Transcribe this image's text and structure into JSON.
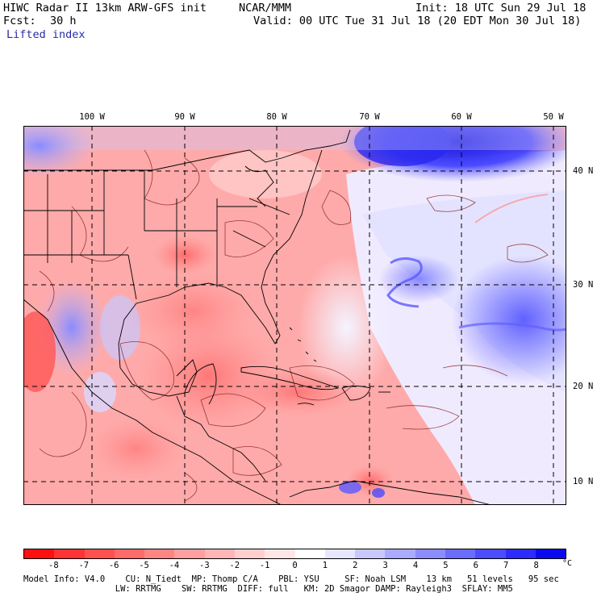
{
  "header": {
    "title_left": "HIWC Radar II 13km ARW-GFS init",
    "title_mid": "NCAR/MMM",
    "init": "Init: 18 UTC Sun 29 Jul 18",
    "fcst_label": "Fcst:",
    "fcst_value": "30 h",
    "valid": "Valid: 00 UTC Tue 31 Jul 18 (20 EDT Mon 30 Jul 18)",
    "field": "Lifted index"
  },
  "map": {
    "lon_labels": [
      "100 W",
      "90 W",
      "80 W",
      "70 W",
      "60 W",
      "50 W"
    ],
    "lat_labels": [
      "40 N",
      "30 N",
      "20 N",
      "10 N"
    ]
  },
  "colorbar": {
    "ticks": [
      "-8",
      "-7",
      "-6",
      "-5",
      "-4",
      "-3",
      "-2",
      "-1",
      "0",
      "1",
      "2",
      "3",
      "4",
      "5",
      "6",
      "7",
      "8"
    ],
    "unit": "°C",
    "colors": [
      "#ff1010",
      "#ff3333",
      "#ff5050",
      "#ff6a6a",
      "#ff8484",
      "#ff9e9e",
      "#ffb6b6",
      "#ffcfcf",
      "#ffe6e6",
      "#ffffff",
      "#e6e6ff",
      "#c8c8ff",
      "#aaaaff",
      "#8c8cff",
      "#6c6cff",
      "#4c4cff",
      "#2c2cff",
      "#0a0af0"
    ]
  },
  "footer": {
    "line1": "Model Info: V4.0    CU: N_Tiedt  MP: Thomp C/A    PBL: YSU     SF: Noah LSM    13 km   51 levels   95 sec",
    "line2": "                  LW: RRTMG    SW: RRTMG  DIFF: full   KM: 2D Smagor DAMP: Rayleigh3  SFLAY: MM5"
  }
}
